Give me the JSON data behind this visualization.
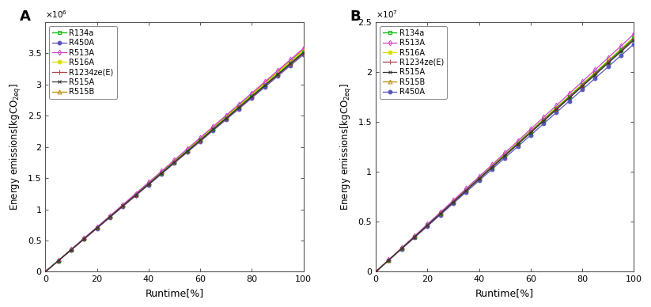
{
  "panel_A": {
    "label": "A",
    "ylabel": "Energy emissions[kgCO$_{2eq}$]",
    "xlabel": "Runtime[%]",
    "ylim": [
      0,
      4000000.0
    ],
    "ytick_scale": 1000000.0,
    "yticks": [
      0,
      0.5,
      1.0,
      1.5,
      2.0,
      2.5,
      3.0,
      3.5
    ],
    "exponent": 6,
    "series": [
      {
        "label": "R134a",
        "slope": 35200,
        "color": "#00BB00",
        "marker": "s",
        "markersize": 3.5,
        "linestyle": "-",
        "linewidth": 0.9,
        "zorder": 5,
        "filled": false
      },
      {
        "label": "R450A",
        "slope": 34800,
        "color": "#5555BB",
        "marker": "o",
        "markersize": 3.5,
        "linestyle": "-",
        "linewidth": 0.9,
        "zorder": 4,
        "filled": true
      },
      {
        "label": "R513A",
        "slope": 35800,
        "color": "#CC44CC",
        "marker": "d",
        "markersize": 3.5,
        "linestyle": "-",
        "linewidth": 0.9,
        "zorder": 6,
        "filled": false
      },
      {
        "label": "R516A",
        "slope": 35400,
        "color": "#DDDD00",
        "marker": "o",
        "markersize": 3.5,
        "linestyle": "-",
        "linewidth": 0.9,
        "zorder": 3,
        "filled": true
      },
      {
        "label": "R1234ze(E)",
        "slope": 35000,
        "color": "#AA4444",
        "marker": "+",
        "markersize": 4.5,
        "linestyle": "-",
        "linewidth": 0.9,
        "zorder": 7,
        "filled": true
      },
      {
        "label": "R515A",
        "slope": 35100,
        "color": "#333333",
        "marker": "x",
        "markersize": 3.5,
        "linestyle": "-",
        "linewidth": 0.9,
        "zorder": 8,
        "filled": true
      },
      {
        "label": "R515B",
        "slope": 35600,
        "color": "#BB8800",
        "marker": "^",
        "markersize": 3.5,
        "linestyle": "-",
        "linewidth": 0.9,
        "zorder": 2,
        "filled": false
      }
    ]
  },
  "panel_B": {
    "label": "B",
    "ylabel": "Energy emissions[kgCO$_{2eq}$]",
    "xlabel": "Runtime[%]",
    "ylim": [
      0,
      25000000.0
    ],
    "ytick_scale": 10000000.0,
    "yticks": [
      0,
      0.5,
      1.0,
      1.5,
      2.0,
      2.5
    ],
    "exponent": 7,
    "series": [
      {
        "label": "R134a",
        "slope": 234000,
        "color": "#00BB00",
        "marker": "s",
        "markersize": 3.5,
        "linestyle": "-",
        "linewidth": 0.9,
        "zorder": 5,
        "filled": false
      },
      {
        "label": "R513A",
        "slope": 238000,
        "color": "#CC44CC",
        "marker": "d",
        "markersize": 3.5,
        "linestyle": "-",
        "linewidth": 0.9,
        "zorder": 6,
        "filled": false
      },
      {
        "label": "R516A",
        "slope": 235000,
        "color": "#DDDD00",
        "marker": "o",
        "markersize": 3.5,
        "linestyle": "-",
        "linewidth": 0.9,
        "zorder": 3,
        "filled": true
      },
      {
        "label": "R1234ze(E)",
        "slope": 233000,
        "color": "#AA4444",
        "marker": "+",
        "markersize": 4.5,
        "linestyle": "-",
        "linewidth": 0.9,
        "zorder": 7,
        "filled": true
      },
      {
        "label": "R515A",
        "slope": 232000,
        "color": "#333333",
        "marker": "x",
        "markersize": 3.5,
        "linestyle": "-",
        "linewidth": 0.9,
        "zorder": 8,
        "filled": true
      },
      {
        "label": "R515B",
        "slope": 234500,
        "color": "#BB8800",
        "marker": "^",
        "markersize": 3.5,
        "linestyle": "-",
        "linewidth": 0.9,
        "zorder": 2,
        "filled": false
      },
      {
        "label": "R450A",
        "slope": 228000,
        "color": "#5555BB",
        "marker": "o",
        "markersize": 3.5,
        "linestyle": "-",
        "linewidth": 0.9,
        "zorder": 4,
        "filled": true
      }
    ]
  },
  "x_points": [
    0,
    5,
    10,
    15,
    20,
    25,
    30,
    35,
    40,
    45,
    50,
    55,
    60,
    65,
    70,
    75,
    80,
    85,
    90,
    95,
    100
  ],
  "background_color": "#ffffff"
}
